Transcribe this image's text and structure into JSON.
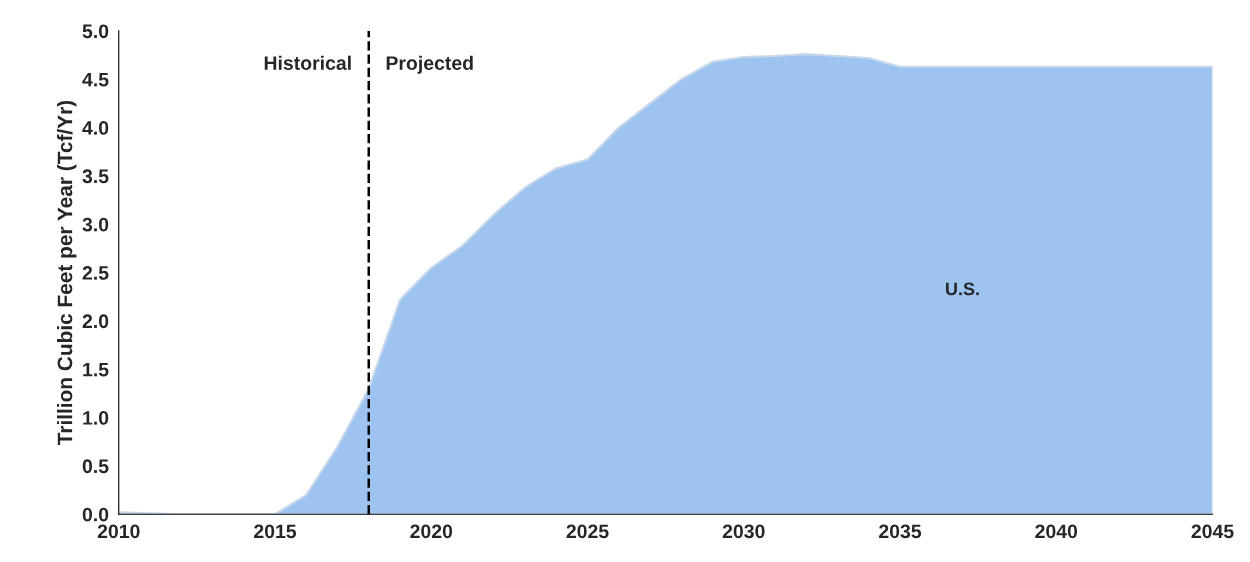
{
  "chart_data": {
    "type": "area",
    "ylabel": "Trillion Cubic Feet per Year (Tcf/Yr)",
    "x": [
      2010,
      2011,
      2012,
      2013,
      2014,
      2015,
      2016,
      2017,
      2018,
      2019,
      2020,
      2021,
      2022,
      2023,
      2024,
      2025,
      2026,
      2027,
      2028,
      2029,
      2030,
      2031,
      2032,
      2033,
      2034,
      2035,
      2036,
      2037,
      2038,
      2039,
      2040,
      2041,
      2042,
      2043,
      2044,
      2045
    ],
    "series": [
      {
        "name": "U.S.",
        "color": "#9dc3f0",
        "values": [
          0.02,
          0.01,
          0,
          0,
          0,
          0,
          0.2,
          0.7,
          1.3,
          2.22,
          2.55,
          2.78,
          3.1,
          3.38,
          3.58,
          3.67,
          4.0,
          4.25,
          4.5,
          4.68,
          4.73,
          4.74,
          4.76,
          4.74,
          4.72,
          4.63,
          4.63,
          4.63,
          4.63,
          4.63,
          4.63,
          4.63,
          4.63,
          4.63,
          4.63,
          4.63
        ]
      }
    ],
    "xlim": [
      2010,
      2045
    ],
    "xticks": [
      2010,
      2015,
      2020,
      2025,
      2030,
      2035,
      2040,
      2045
    ],
    "ylim": [
      0,
      5
    ],
    "yticks": [
      {
        "value": 0,
        "label": "0.0"
      },
      {
        "value": 0.5,
        "label": "0.5"
      },
      {
        "value": 1,
        "label": "1.0"
      },
      {
        "value": 1.5,
        "label": "1.5"
      },
      {
        "value": 2,
        "label": "2.0"
      },
      {
        "value": 2.5,
        "label": "2.5"
      },
      {
        "value": 3,
        "label": "3.0"
      },
      {
        "value": 3.5,
        "label": "3.5"
      },
      {
        "value": 4,
        "label": "4.0"
      },
      {
        "value": 4.5,
        "label": "4.5"
      },
      {
        "value": 5,
        "label": "5.0"
      }
    ],
    "ref_lines": [
      {
        "axis": "x",
        "value": 2018,
        "color": "#000000",
        "line_style": "dashed"
      }
    ],
    "annotations": [
      "Historical",
      "Projected"
    ],
    "grid": false,
    "legend": false
  }
}
